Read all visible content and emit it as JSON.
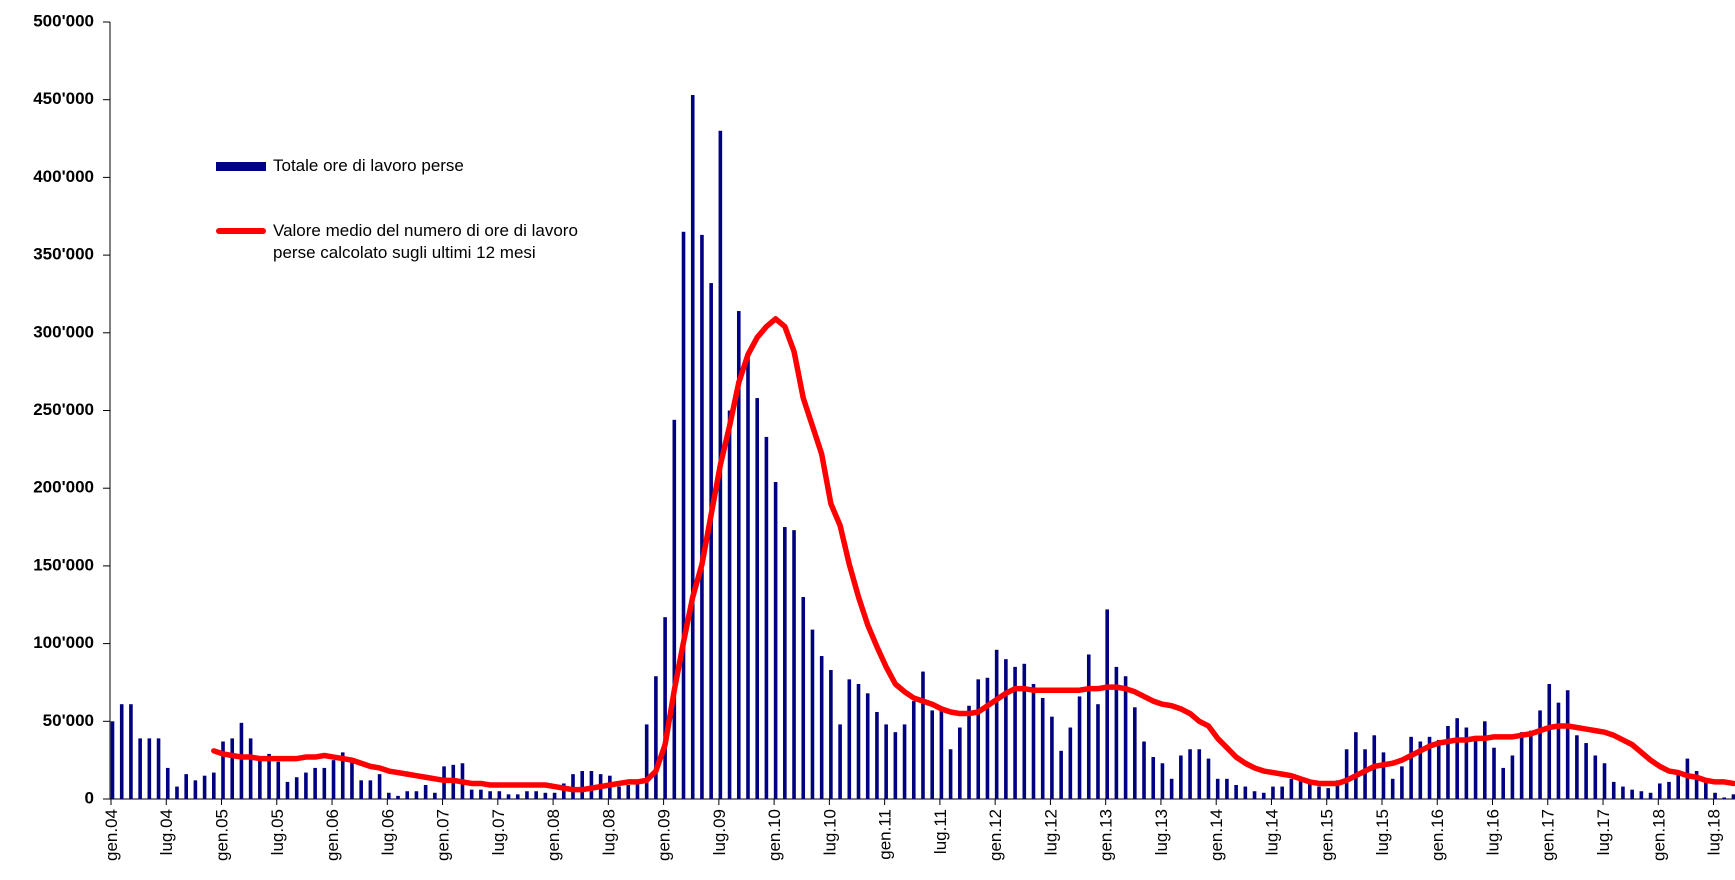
{
  "chart_data": {
    "type": "bar_line",
    "categories": [
      "gen.04",
      null,
      null,
      null,
      null,
      null,
      "lug.04",
      null,
      null,
      null,
      null,
      null,
      "gen.05",
      null,
      null,
      null,
      null,
      null,
      "lug.05",
      null,
      null,
      null,
      null,
      null,
      "gen.06",
      null,
      null,
      null,
      null,
      null,
      "lug.06",
      null,
      null,
      null,
      null,
      null,
      "gen.07",
      null,
      null,
      null,
      null,
      null,
      "lug.07",
      null,
      null,
      null,
      null,
      null,
      "gen.08",
      null,
      null,
      null,
      null,
      null,
      "lug.08",
      null,
      null,
      null,
      null,
      null,
      "gen.09",
      null,
      null,
      null,
      null,
      null,
      "lug.09",
      null,
      null,
      null,
      null,
      null,
      "gen.10",
      null,
      null,
      null,
      null,
      null,
      "lug.10",
      null,
      null,
      null,
      null,
      null,
      "gen.11",
      null,
      null,
      null,
      null,
      null,
      "lug.11",
      null,
      null,
      null,
      null,
      null,
      "gen.12",
      null,
      null,
      null,
      null,
      null,
      "lug.12",
      null,
      null,
      null,
      null,
      null,
      "gen.13",
      null,
      null,
      null,
      null,
      null,
      "lug.13",
      null,
      null,
      null,
      null,
      null,
      "gen.14",
      null,
      null,
      null,
      null,
      null,
      "lug.14",
      null,
      null,
      null,
      null,
      null,
      "gen.15",
      null,
      null,
      null,
      null,
      null,
      "lug.15",
      null,
      null,
      null,
      null,
      null,
      "gen.16",
      null,
      null,
      null,
      null,
      null,
      "lug.16",
      null,
      null,
      null,
      null,
      null,
      "gen.17",
      null,
      null,
      null,
      null,
      null,
      "lug.17",
      null,
      null,
      null,
      null,
      null,
      "gen.18",
      null,
      null,
      null,
      null,
      null,
      "lug.18",
      null,
      null
    ],
    "series": [
      {
        "name": "Totale ore di lavoro perse",
        "color": "#000080",
        "kind": "bar",
        "values": [
          50000,
          61000,
          61000,
          39000,
          39000,
          39000,
          20000,
          8000,
          16000,
          12000,
          15000,
          17000,
          37000,
          39000,
          49000,
          39000,
          27000,
          29000,
          24000,
          11000,
          14000,
          17000,
          20000,
          20000,
          25000,
          30000,
          26000,
          12000,
          12000,
          16000,
          4000,
          2000,
          5000,
          5000,
          9000,
          4000,
          21000,
          22000,
          23000,
          6000,
          6000,
          5000,
          5000,
          3000,
          3000,
          5000,
          5000,
          4000,
          4000,
          10000,
          16000,
          18000,
          18000,
          16000,
          15000,
          8000,
          9000,
          10000,
          48000,
          79000,
          117000,
          244000,
          365000,
          453000,
          363000,
          332000,
          430000,
          250000,
          314000,
          287000,
          258000,
          233000,
          204000,
          175000,
          173000,
          130000,
          109000,
          92000,
          83000,
          48000,
          77000,
          74000,
          68000,
          56000,
          48000,
          43000,
          48000,
          63000,
          82000,
          57000,
          57000,
          32000,
          46000,
          60000,
          77000,
          78000,
          96000,
          90000,
          85000,
          87000,
          74000,
          65000,
          53000,
          31000,
          46000,
          66000,
          93000,
          61000,
          122000,
          85000,
          79000,
          59000,
          37000,
          27000,
          23000,
          13000,
          28000,
          32000,
          32000,
          26000,
          13000,
          13000,
          9000,
          8000,
          5000,
          4000,
          8000,
          8000,
          13000,
          13000,
          10000,
          8000,
          7000,
          12000,
          32000,
          43000,
          32000,
          41000,
          30000,
          13000,
          21000,
          40000,
          37000,
          40000,
          38000,
          47000,
          52000,
          46000,
          40000,
          50000,
          33000,
          20000,
          28000,
          43000,
          44000,
          57000,
          74000,
          62000,
          70000,
          41000,
          36000,
          28000,
          23000,
          11000,
          8000,
          6000,
          5000,
          4000,
          10000,
          11000,
          18000,
          26000,
          18000,
          12000,
          4000,
          1000,
          3000
        ]
      },
      {
        "name": "Valore medio del numero di ore di lavoro perse calcolato sugli ultimi 12 mesi",
        "color": "#ff0000",
        "kind": "line",
        "values": [
          null,
          null,
          null,
          null,
          null,
          null,
          null,
          null,
          null,
          null,
          null,
          31000,
          29000,
          28000,
          27000,
          27000,
          26000,
          26000,
          26000,
          26000,
          26000,
          27000,
          27000,
          28000,
          27000,
          26000,
          25000,
          23000,
          21000,
          20000,
          18000,
          17000,
          16000,
          15000,
          14000,
          13000,
          12000,
          12000,
          11000,
          10000,
          10000,
          9000,
          9000,
          9000,
          9000,
          9000,
          9000,
          9000,
          8000,
          7000,
          6000,
          6000,
          7000,
          8000,
          9000,
          10000,
          11000,
          11000,
          12000,
          18000,
          35000,
          70000,
          101000,
          130000,
          151000,
          183000,
          215000,
          240000,
          268000,
          286000,
          297000,
          304000,
          309000,
          304000,
          288000,
          258000,
          240000,
          222000,
          190000,
          176000,
          151000,
          130000,
          112000,
          98000,
          85000,
          74000,
          69000,
          65000,
          63000,
          61000,
          58000,
          56000,
          55000,
          55000,
          56000,
          60000,
          64000,
          68000,
          71000,
          71000,
          70000,
          70000,
          70000,
          70000,
          70000,
          70000,
          71000,
          71000,
          72000,
          72000,
          71000,
          69000,
          66000,
          63000,
          61000,
          60000,
          58000,
          55000,
          50000,
          47000,
          39000,
          33000,
          27000,
          23000,
          20000,
          18000,
          17000,
          16000,
          15000,
          13000,
          11000,
          10000,
          10000,
          10000,
          12000,
          15000,
          18000,
          21000,
          22000,
          23000,
          25000,
          28000,
          31000,
          34000,
          36000,
          37000,
          38000,
          38000,
          39000,
          39000,
          40000,
          40000,
          40000,
          41000,
          42000,
          44000,
          46000,
          47000,
          47000,
          46000,
          45000,
          44000,
          43000,
          41000,
          38000,
          35000,
          30000,
          25000,
          21000,
          18000,
          17000,
          15000,
          14000,
          12000,
          11000,
          11000,
          10000
        ]
      }
    ],
    "ylim": [
      0,
      500000
    ],
    "yticks": [
      0,
      {
        "value": 50000,
        "label": "50'000"
      },
      {
        "value": 100000,
        "label": "100'000"
      },
      {
        "value": 150000,
        "label": "150'000"
      },
      {
        "value": 200000,
        "label": "200'000"
      },
      {
        "value": 250000,
        "label": "250'000"
      },
      {
        "value": 300000,
        "label": "300'000"
      },
      {
        "value": 350000,
        "label": "350'000"
      },
      {
        "value": 400000,
        "label": "400'000"
      },
      {
        "value": 450000,
        "label": "450'000"
      },
      {
        "value": 500000,
        "label": "500'000"
      }
    ],
    "grid": false
  }
}
